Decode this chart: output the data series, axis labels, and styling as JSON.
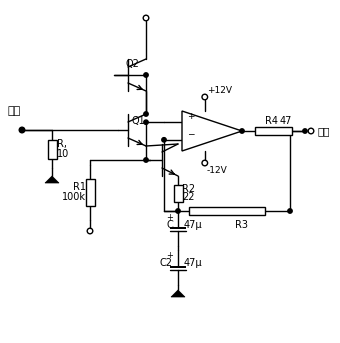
{
  "background": "#ffffff",
  "line_color": "#000000",
  "lw": 1.0,
  "components": {
    "Ri_label": "R,",
    "Ri_value": "10",
    "R1_label": "R1",
    "R1_value": "100k",
    "R2_label": "R2",
    "R2_value": "22",
    "R3_label": "R3",
    "R4_label": "R4",
    "R4_value": "47",
    "C1_label": "C",
    "C1_value": "47μ",
    "C2_label": "C2",
    "C2_value": "47μ",
    "Q1_label": "Q1",
    "Q2_label": "Q2",
    "input_label": "输入",
    "output_label": "输出",
    "vplus_label": "+12V",
    "vminus_label": "-12V"
  }
}
